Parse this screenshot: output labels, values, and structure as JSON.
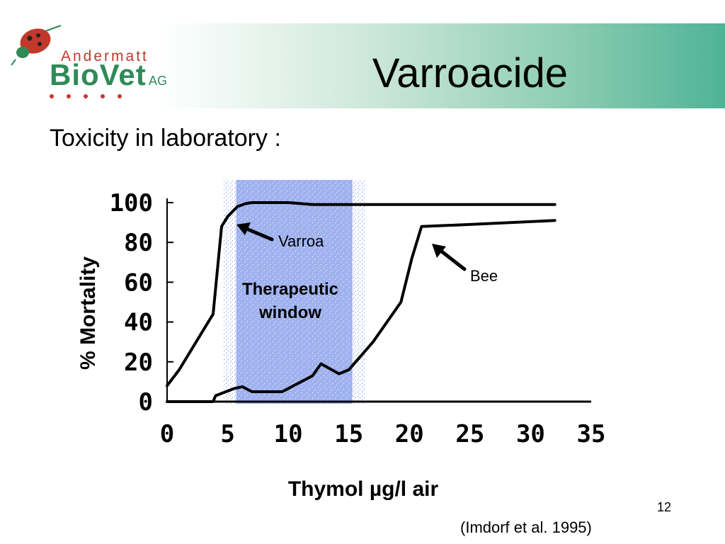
{
  "slide": {
    "title": "Varroacide",
    "subtitle": "Toxicity in laboratory :",
    "page_number": "12",
    "citation": "(Imdorf et al. 1995)"
  },
  "logo": {
    "top": "Andermatt",
    "main": "BioVet",
    "suffix": "AG"
  },
  "colors": {
    "header_accent": "#4fb395",
    "logo_green": "#2e8b57",
    "logo_red": "#c0392b",
    "window_fill": "#a8b8f0"
  },
  "icons": {
    "logo": "ladybug-icon"
  },
  "chart_data": {
    "type": "line",
    "xlabel": "Thymol µg/l air",
    "ylabel": "% Mortality",
    "xlim": [
      0,
      35
    ],
    "ylim": [
      0,
      100
    ],
    "xticks": [
      0,
      5,
      10,
      15,
      20,
      25,
      30,
      35
    ],
    "yticks": [
      0,
      20,
      40,
      60,
      80,
      100
    ],
    "grid": false,
    "therapeutic_window": {
      "label_line1": "Therapeutic",
      "label_line2": "window",
      "x_range": [
        5,
        16
      ]
    },
    "series": [
      {
        "name": "Varroa",
        "x": [
          0,
          1,
          2,
          3,
          3.8,
          4.5,
          5,
          5.8,
          6.5,
          7,
          8,
          10,
          12,
          15,
          20,
          25,
          32
        ],
        "y": [
          8,
          16,
          26,
          36,
          44,
          88,
          93,
          98,
          99.5,
          100,
          100,
          100,
          99,
          99,
          99,
          99,
          99
        ]
      },
      {
        "name": "Bee",
        "x": [
          0,
          3.8,
          4,
          5.5,
          6.2,
          7,
          9.5,
          12,
          12.7,
          14.2,
          15,
          17,
          19.3,
          20.2,
          21,
          25,
          32
        ],
        "y": [
          0,
          0,
          3,
          6.5,
          7.5,
          5,
          5,
          13,
          19,
          14,
          16,
          30,
          50,
          72,
          88,
          89,
          91
        ]
      }
    ]
  }
}
